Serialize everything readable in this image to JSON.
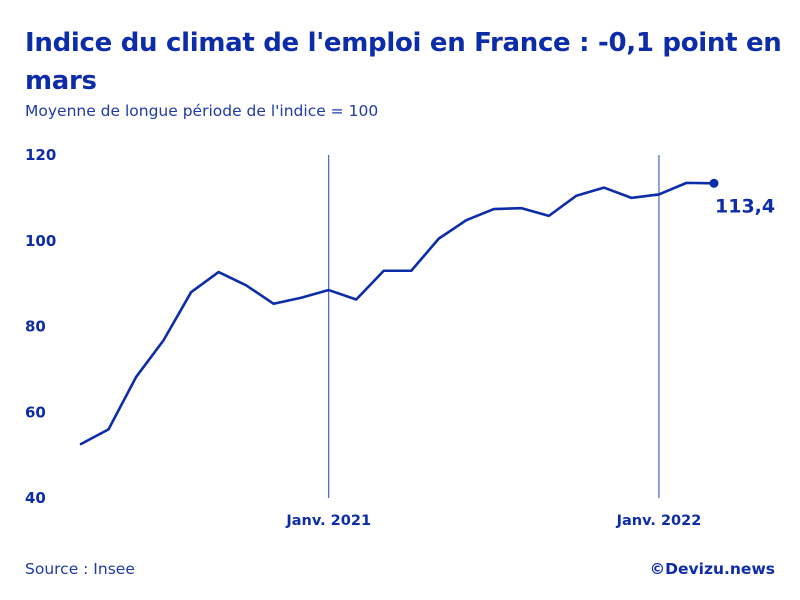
{
  "header": {
    "title": "Indice du climat de l'emploi en France : -0,1 point en mars",
    "subtitle": "Moyenne de longue période de l'indice = 100"
  },
  "footer": {
    "source": "Source : Insee",
    "credit": "©Devizu.news"
  },
  "colors": {
    "line": "#0d2ca8",
    "text": "#0d2ca8",
    "reference_line": "#2a44b8",
    "background": "#ffffff"
  },
  "chart_data": {
    "type": "line",
    "title": "Indice du climat de l'emploi en France : -0,1 point en mars",
    "subtitle": "Moyenne de longue période de l'indice = 100",
    "xlabel": "",
    "ylabel": "",
    "ylim": [
      40,
      120
    ],
    "yticks": [
      40,
      60,
      80,
      100,
      120
    ],
    "grid": false,
    "legend": "none",
    "x": [
      "2020-04",
      "2020-05",
      "2020-06",
      "2020-07",
      "2020-08",
      "2020-09",
      "2020-10",
      "2020-11",
      "2020-12",
      "2021-01",
      "2021-02",
      "2021-03",
      "2021-04",
      "2021-05",
      "2021-06",
      "2021-07",
      "2021-08",
      "2021-09",
      "2021-10",
      "2021-11",
      "2021-12",
      "2022-01",
      "2022-02",
      "2022-03"
    ],
    "values": [
      52.6,
      56.0,
      68.2,
      76.8,
      88.0,
      92.7,
      89.6,
      85.3,
      86.7,
      88.5,
      86.3,
      93.0,
      93.0,
      100.5,
      104.8,
      107.4,
      107.6,
      105.8,
      110.5,
      112.4,
      110.0,
      110.8,
      113.5,
      113.4
    ],
    "reference_lines": [
      {
        "x": "2021-01",
        "label": "Janv. 2021"
      },
      {
        "x": "2022-01",
        "label": "Janv. 2022"
      }
    ],
    "last_value_label": "113,4"
  }
}
